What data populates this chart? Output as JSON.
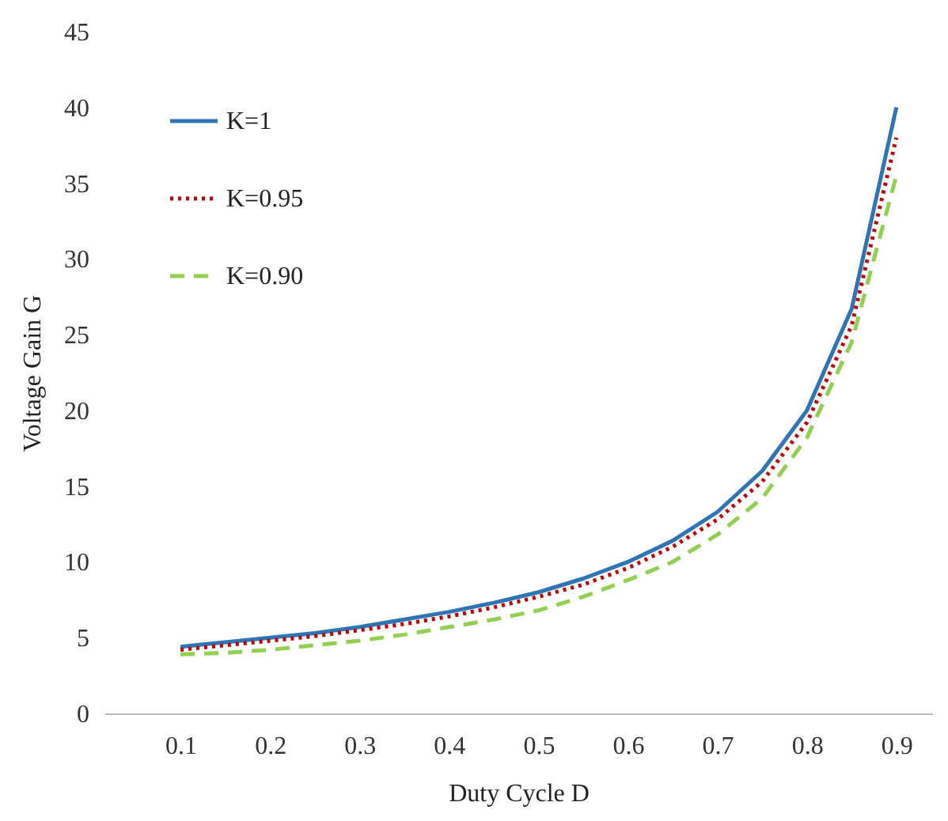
{
  "chart_data": {
    "type": "line",
    "xlabel": "Duty Cycle D",
    "ylabel": "Voltage Gain G",
    "x": [
      0.1,
      0.15,
      0.2,
      0.25,
      0.3,
      0.35,
      0.4,
      0.45,
      0.5,
      0.55,
      0.6,
      0.65,
      0.7,
      0.75,
      0.8,
      0.85,
      0.9
    ],
    "series": [
      {
        "name": "K=1",
        "color": "#2e75b6",
        "line_style": "solid",
        "values": [
          4.4,
          4.7,
          5.0,
          5.3,
          5.7,
          6.2,
          6.7,
          7.3,
          8.0,
          8.9,
          10.0,
          11.4,
          13.3,
          16.0,
          20.0,
          26.7,
          40.0
        ]
      },
      {
        "name": "K=0.95",
        "color": "#c00000",
        "line_style": "dotted",
        "values": [
          4.2,
          4.5,
          4.8,
          5.1,
          5.5,
          5.9,
          6.4,
          7.0,
          7.7,
          8.5,
          9.6,
          11.0,
          12.8,
          15.3,
          19.2,
          25.6,
          38.0
        ]
      },
      {
        "name": "K=0.90",
        "color": "#92d050",
        "line_style": "dashed",
        "values": [
          3.9,
          4.0,
          4.2,
          4.5,
          4.8,
          5.2,
          5.7,
          6.2,
          6.8,
          7.7,
          8.8,
          10.0,
          11.8,
          14.2,
          18.2,
          24.5,
          35.5
        ]
      }
    ],
    "xlim": [
      0.015,
      0.94
    ],
    "xticks": [
      0.1,
      0.2,
      0.3,
      0.4,
      0.5,
      0.6,
      0.7,
      0.8,
      0.9
    ],
    "ylim": [
      0,
      45
    ],
    "yticks": [
      0,
      5,
      10,
      15,
      20,
      25,
      30,
      35,
      40,
      45
    ],
    "grid": false,
    "legend": "top left",
    "marker": "none"
  }
}
